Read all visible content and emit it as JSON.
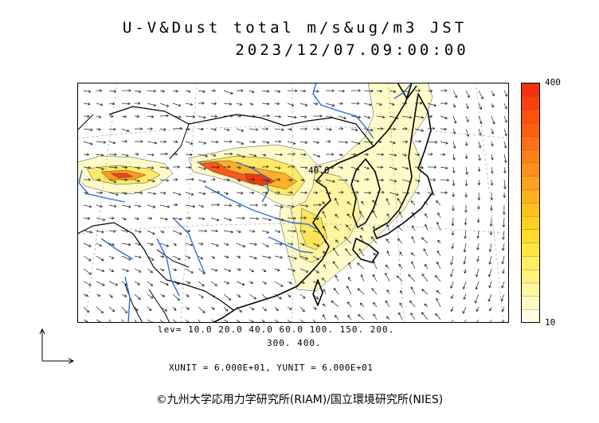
{
  "title": "U-V&Dust total m/s&ug/m3 JST",
  "datetime": "2023/12/07.09:00:00",
  "colorbar": {
    "max_label": "400",
    "min_label": "10",
    "colors": [
      "#ffffe0",
      "#fffbc0",
      "#fff7a0",
      "#fff380",
      "#ffee60",
      "#ffe640",
      "#ffdc28",
      "#ffd020",
      "#ffc020",
      "#ffb020",
      "#ffa020",
      "#ff9020",
      "#ff8018",
      "#ff7018",
      "#ff6010",
      "#ff5010",
      "#f84010",
      "#f03010"
    ]
  },
  "contour_label": "40.0",
  "levels_line1": "lev= 10.0 20.0 40.0 60.0 100. 150. 200.",
  "levels_line2": "300. 400.",
  "units": "XUNIT = 6.000E+01, YUNIT = 6.000E+01",
  "copyright": "©九州大学応用力学研究所(RIAM)/国立環境研究所(NIES)"
}
